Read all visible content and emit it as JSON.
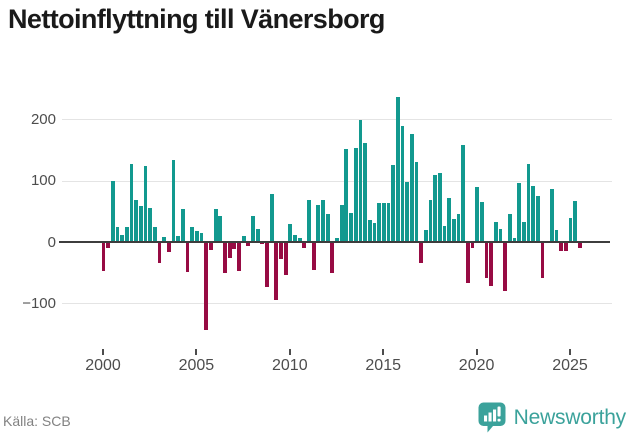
{
  "title": "Nettoinflyttning till Vänersborg",
  "source": "Källa: SCB",
  "logo": {
    "text": "Newsworthy",
    "icon": "newsworthy-bubble-chart-icon"
  },
  "colors": {
    "positive_bar": "#12998F",
    "negative_bar": "#970B43",
    "title_text": "#1A1A1A",
    "axis_text": "#4D4D4D",
    "gridline": "#E4E4E4",
    "zero_line": "#3D3D3D",
    "source_text": "#828282",
    "logo_teal": "#3BA29B",
    "background": "#FFFFFF"
  },
  "chart_data": {
    "type": "bar",
    "title": "Nettoinflyttning till Vänersborg",
    "frequency": "quarterly",
    "start_period": "2000Q1",
    "end_period": "2025Q3",
    "values": [
      -48,
      -10,
      100,
      24,
      11,
      24,
      127,
      68,
      58,
      124,
      56,
      24,
      -35,
      8,
      -16,
      133,
      10,
      54,
      -49,
      24,
      18,
      14,
      -143,
      -13,
      54,
      42,
      -51,
      -26,
      -12,
      -47,
      10,
      -7,
      43,
      21,
      -4,
      -74,
      78,
      -95,
      -28,
      -53,
      30,
      11,
      7,
      -10,
      68,
      -46,
      61,
      68,
      45,
      -51,
      6,
      60,
      151,
      47,
      153,
      199,
      162,
      36,
      31,
      63,
      63,
      63,
      126,
      236,
      189,
      98,
      176,
      131,
      -35,
      20,
      68,
      109,
      113,
      26,
      71,
      38,
      46,
      158,
      -67,
      -9,
      89,
      65,
      -58,
      -72,
      33,
      21,
      -80,
      46,
      6,
      97,
      32,
      127,
      91,
      75,
      -58,
      0,
      87,
      20,
      -14,
      -14,
      39,
      67,
      -9
    ],
    "y_ticks": [
      200,
      100,
      0,
      -100
    ],
    "y_tick_labels": [
      "200",
      "100",
      "0",
      "−100"
    ],
    "x_tick_labels": [
      "2000",
      "2005",
      "2010",
      "2015",
      "2020",
      "2025"
    ],
    "ylim": [
      -160,
      250
    ],
    "grid": "horizontal",
    "legend": "none",
    "positive_color": "#12998F",
    "negative_color": "#970B43"
  }
}
